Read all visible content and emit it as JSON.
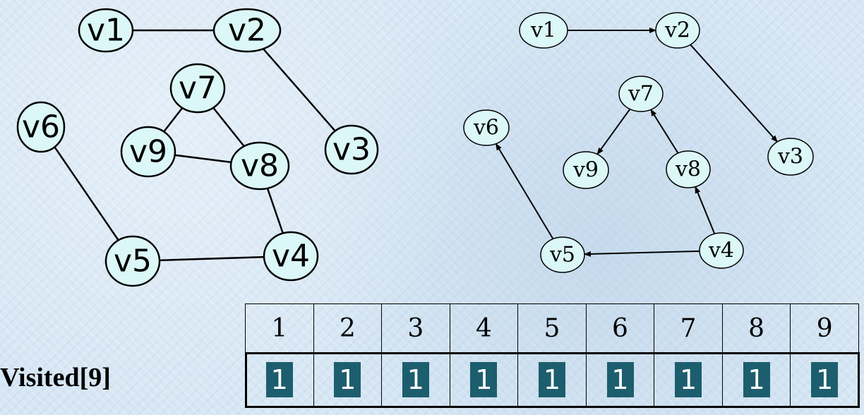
{
  "left_graph": {
    "vertices": [
      {
        "id": "v1",
        "label": "v1"
      },
      {
        "id": "v2",
        "label": "v2"
      },
      {
        "id": "v3",
        "label": "v3"
      },
      {
        "id": "v4",
        "label": "v4"
      },
      {
        "id": "v5",
        "label": "v5"
      },
      {
        "id": "v6",
        "label": "v6"
      },
      {
        "id": "v7",
        "label": "v7"
      },
      {
        "id": "v8",
        "label": "v8"
      },
      {
        "id": "v9",
        "label": "v9"
      }
    ],
    "edges": [
      [
        "v1",
        "v2"
      ],
      [
        "v2",
        "v3"
      ],
      [
        "v7",
        "v9"
      ],
      [
        "v7",
        "v8"
      ],
      [
        "v9",
        "v8"
      ],
      [
        "v8",
        "v4"
      ],
      [
        "v6",
        "v5"
      ],
      [
        "v5",
        "v4"
      ]
    ]
  },
  "right_graph": {
    "vertices": [
      {
        "id": "v1",
        "label": "v1"
      },
      {
        "id": "v2",
        "label": "v2"
      },
      {
        "id": "v3",
        "label": "v3"
      },
      {
        "id": "v4",
        "label": "v4"
      },
      {
        "id": "v5",
        "label": "v5"
      },
      {
        "id": "v6",
        "label": "v6"
      },
      {
        "id": "v7",
        "label": "v7"
      },
      {
        "id": "v8",
        "label": "v8"
      },
      {
        "id": "v9",
        "label": "v9"
      }
    ],
    "arcs": [
      [
        "v1",
        "v2"
      ],
      [
        "v2",
        "v3"
      ],
      [
        "v4",
        "v5"
      ],
      [
        "v4",
        "v8"
      ],
      [
        "v8",
        "v7"
      ],
      [
        "v7",
        "v9"
      ],
      [
        "v5",
        "v6"
      ]
    ]
  },
  "visited": {
    "label": "Visited[9]",
    "indices": [
      "1",
      "2",
      "3",
      "4",
      "5",
      "6",
      "7",
      "8",
      "9"
    ],
    "values": [
      "1",
      "1",
      "1",
      "1",
      "1",
      "1",
      "1",
      "1",
      "1"
    ],
    "flag_color": "#1c5e6e"
  }
}
